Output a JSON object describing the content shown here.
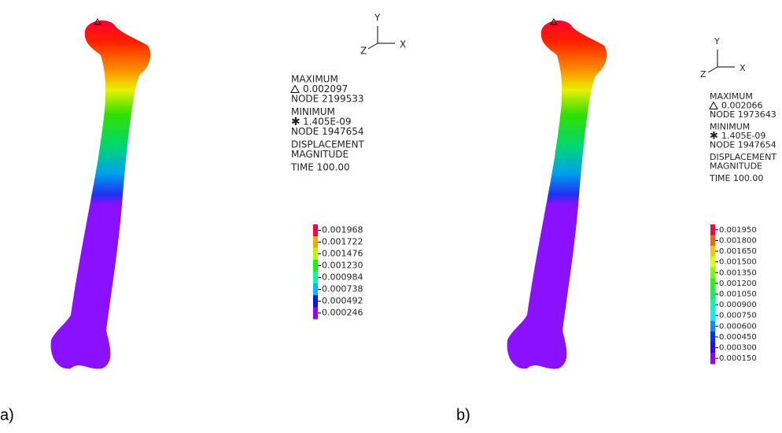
{
  "panels": [
    {
      "label": "a)",
      "axes": {
        "y": "Y",
        "x": "X",
        "z": "Z"
      },
      "maximum": {
        "heading": "MAXIMUM",
        "value": "0.002097",
        "node": "NODE 2199533"
      },
      "minimum": {
        "heading": "MINIMUM",
        "value": "1.405E-09",
        "node": "NODE 1947654"
      },
      "result": [
        "DISPLACEMENT",
        "MAGNITUDE"
      ],
      "time": "TIME 100.00",
      "legend": [
        "0.001968",
        "0.001722",
        "0.001476",
        "0.001230",
        "0.000984",
        "0.000738",
        "0.000492",
        "0.000246"
      ]
    },
    {
      "label": "b)",
      "axes": {
        "y": "Y",
        "x": "X",
        "z": "Z"
      },
      "maximum": {
        "heading": "MAXIMUM",
        "value": "0.002066",
        "node": "NODE 1973643"
      },
      "minimum": {
        "heading": "MINIMUM",
        "value": "1.405E-09",
        "node": "NODE 1947654"
      },
      "result": [
        "DISPLACEMENT",
        "MAGNITUDE"
      ],
      "time": "TIME 100.00",
      "legend": [
        "0.001950",
        "0.001800",
        "0.001650",
        "0.001500",
        "0.001350",
        "0.001200",
        "0.001050",
        "0.000900",
        "0.000750",
        "0.000600",
        "0.000450",
        "0.000300",
        "0.000150"
      ]
    }
  ]
}
